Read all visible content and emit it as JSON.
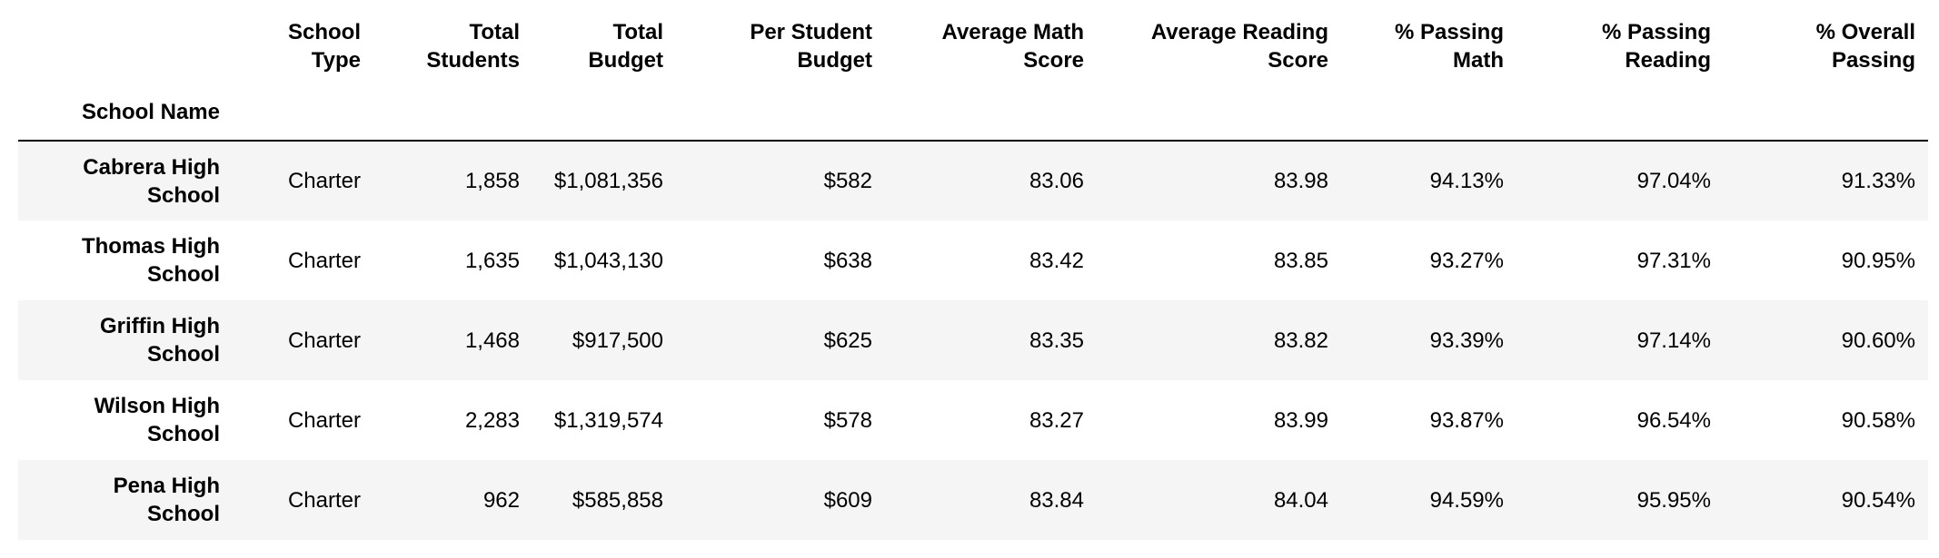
{
  "table": {
    "index_name": "School Name",
    "columns": [
      "School Type",
      "Total Students",
      "Total Budget",
      "Per Student Budget",
      "Average Math Score",
      "Average Reading Score",
      "% Passing Math",
      "% Passing Reading",
      "% Overall Passing"
    ],
    "columns_split": [
      [
        "School",
        "Type"
      ],
      [
        "Total",
        "Students"
      ],
      [
        "Total",
        "Budget"
      ],
      [
        "Per Student",
        "Budget"
      ],
      [
        "Average Math",
        "Score"
      ],
      [
        "Average Reading",
        "Score"
      ],
      [
        "% Passing",
        "Math"
      ],
      [
        "% Passing",
        "Reading"
      ],
      [
        "% Overall",
        "Passing"
      ]
    ],
    "rows": [
      {
        "name": [
          "Cabrera High",
          "School"
        ],
        "cells": [
          "Charter",
          "1,858",
          "$1,081,356",
          "$582",
          "83.06",
          "83.98",
          "94.13%",
          "97.04%",
          "91.33%"
        ]
      },
      {
        "name": [
          "Thomas High",
          "School"
        ],
        "cells": [
          "Charter",
          "1,635",
          "$1,043,130",
          "$638",
          "83.42",
          "83.85",
          "93.27%",
          "97.31%",
          "90.95%"
        ]
      },
      {
        "name": [
          "Griffin High",
          "School"
        ],
        "cells": [
          "Charter",
          "1,468",
          "$917,500",
          "$625",
          "83.35",
          "83.82",
          "93.39%",
          "97.14%",
          "90.60%"
        ]
      },
      {
        "name": [
          "Wilson High",
          "School"
        ],
        "cells": [
          "Charter",
          "2,283",
          "$1,319,574",
          "$578",
          "83.27",
          "83.99",
          "93.87%",
          "96.54%",
          "90.58%"
        ]
      },
      {
        "name": [
          "Pena High",
          "School"
        ],
        "cells": [
          "Charter",
          "962",
          "$585,858",
          "$609",
          "83.84",
          "84.04",
          "94.59%",
          "95.95%",
          "90.54%"
        ]
      }
    ]
  }
}
